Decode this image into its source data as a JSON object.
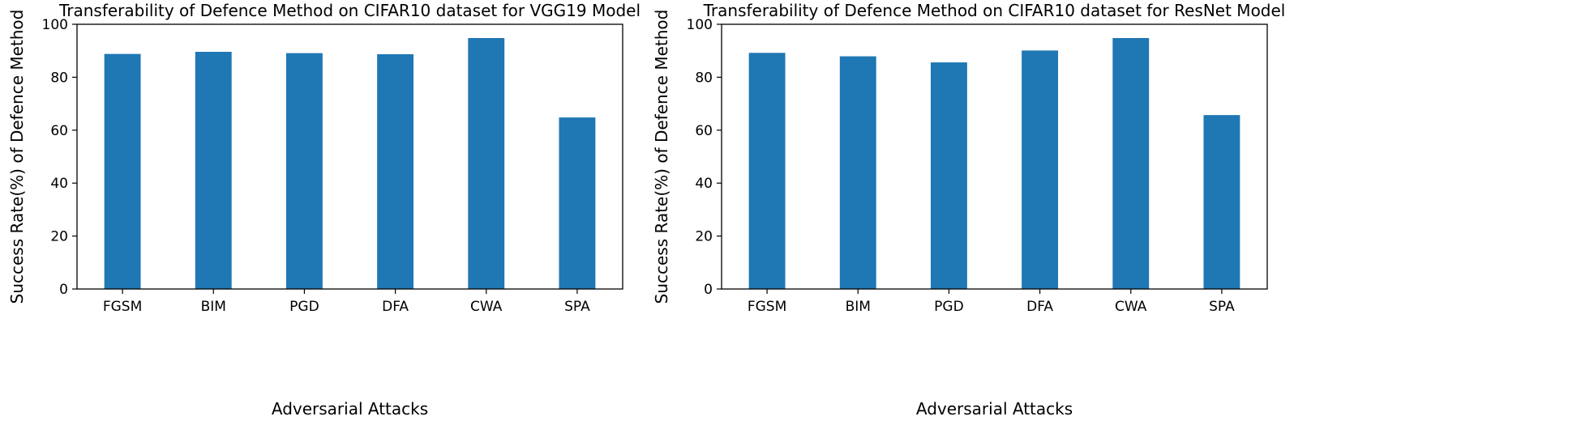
{
  "colors": {
    "bar": "#1f77b4",
    "axis": "#000000",
    "background": "#ffffff"
  },
  "chart_data": [
    {
      "type": "bar",
      "title": "Transferability of Defence Method on CIFAR10 dataset for VGG19 Model",
      "xlabel": "Adversarial Attacks",
      "ylabel": "Success Rate(%) of Defence Method",
      "categories": [
        "FGSM",
        "BIM",
        "PGD",
        "DFA",
        "CWA",
        "SPA"
      ],
      "values": [
        88.8,
        89.6,
        89.1,
        88.7,
        94.8,
        64.8
      ],
      "ylim": [
        0,
        100
      ],
      "yticks": [
        0,
        20,
        40,
        60,
        80,
        100
      ],
      "grid": false
    },
    {
      "type": "bar",
      "title": "Transferability of Defence Method on CIFAR10 dataset for ResNet Model",
      "xlabel": "Adversarial Attacks",
      "ylabel": "Success Rate(%) of Defence Method",
      "categories": [
        "FGSM",
        "BIM",
        "PGD",
        "DFA",
        "CWA",
        "SPA"
      ],
      "values": [
        89.2,
        87.9,
        85.6,
        90.1,
        94.8,
        65.7
      ],
      "ylim": [
        0,
        100
      ],
      "yticks": [
        0,
        20,
        40,
        60,
        80,
        100
      ],
      "grid": false
    }
  ]
}
